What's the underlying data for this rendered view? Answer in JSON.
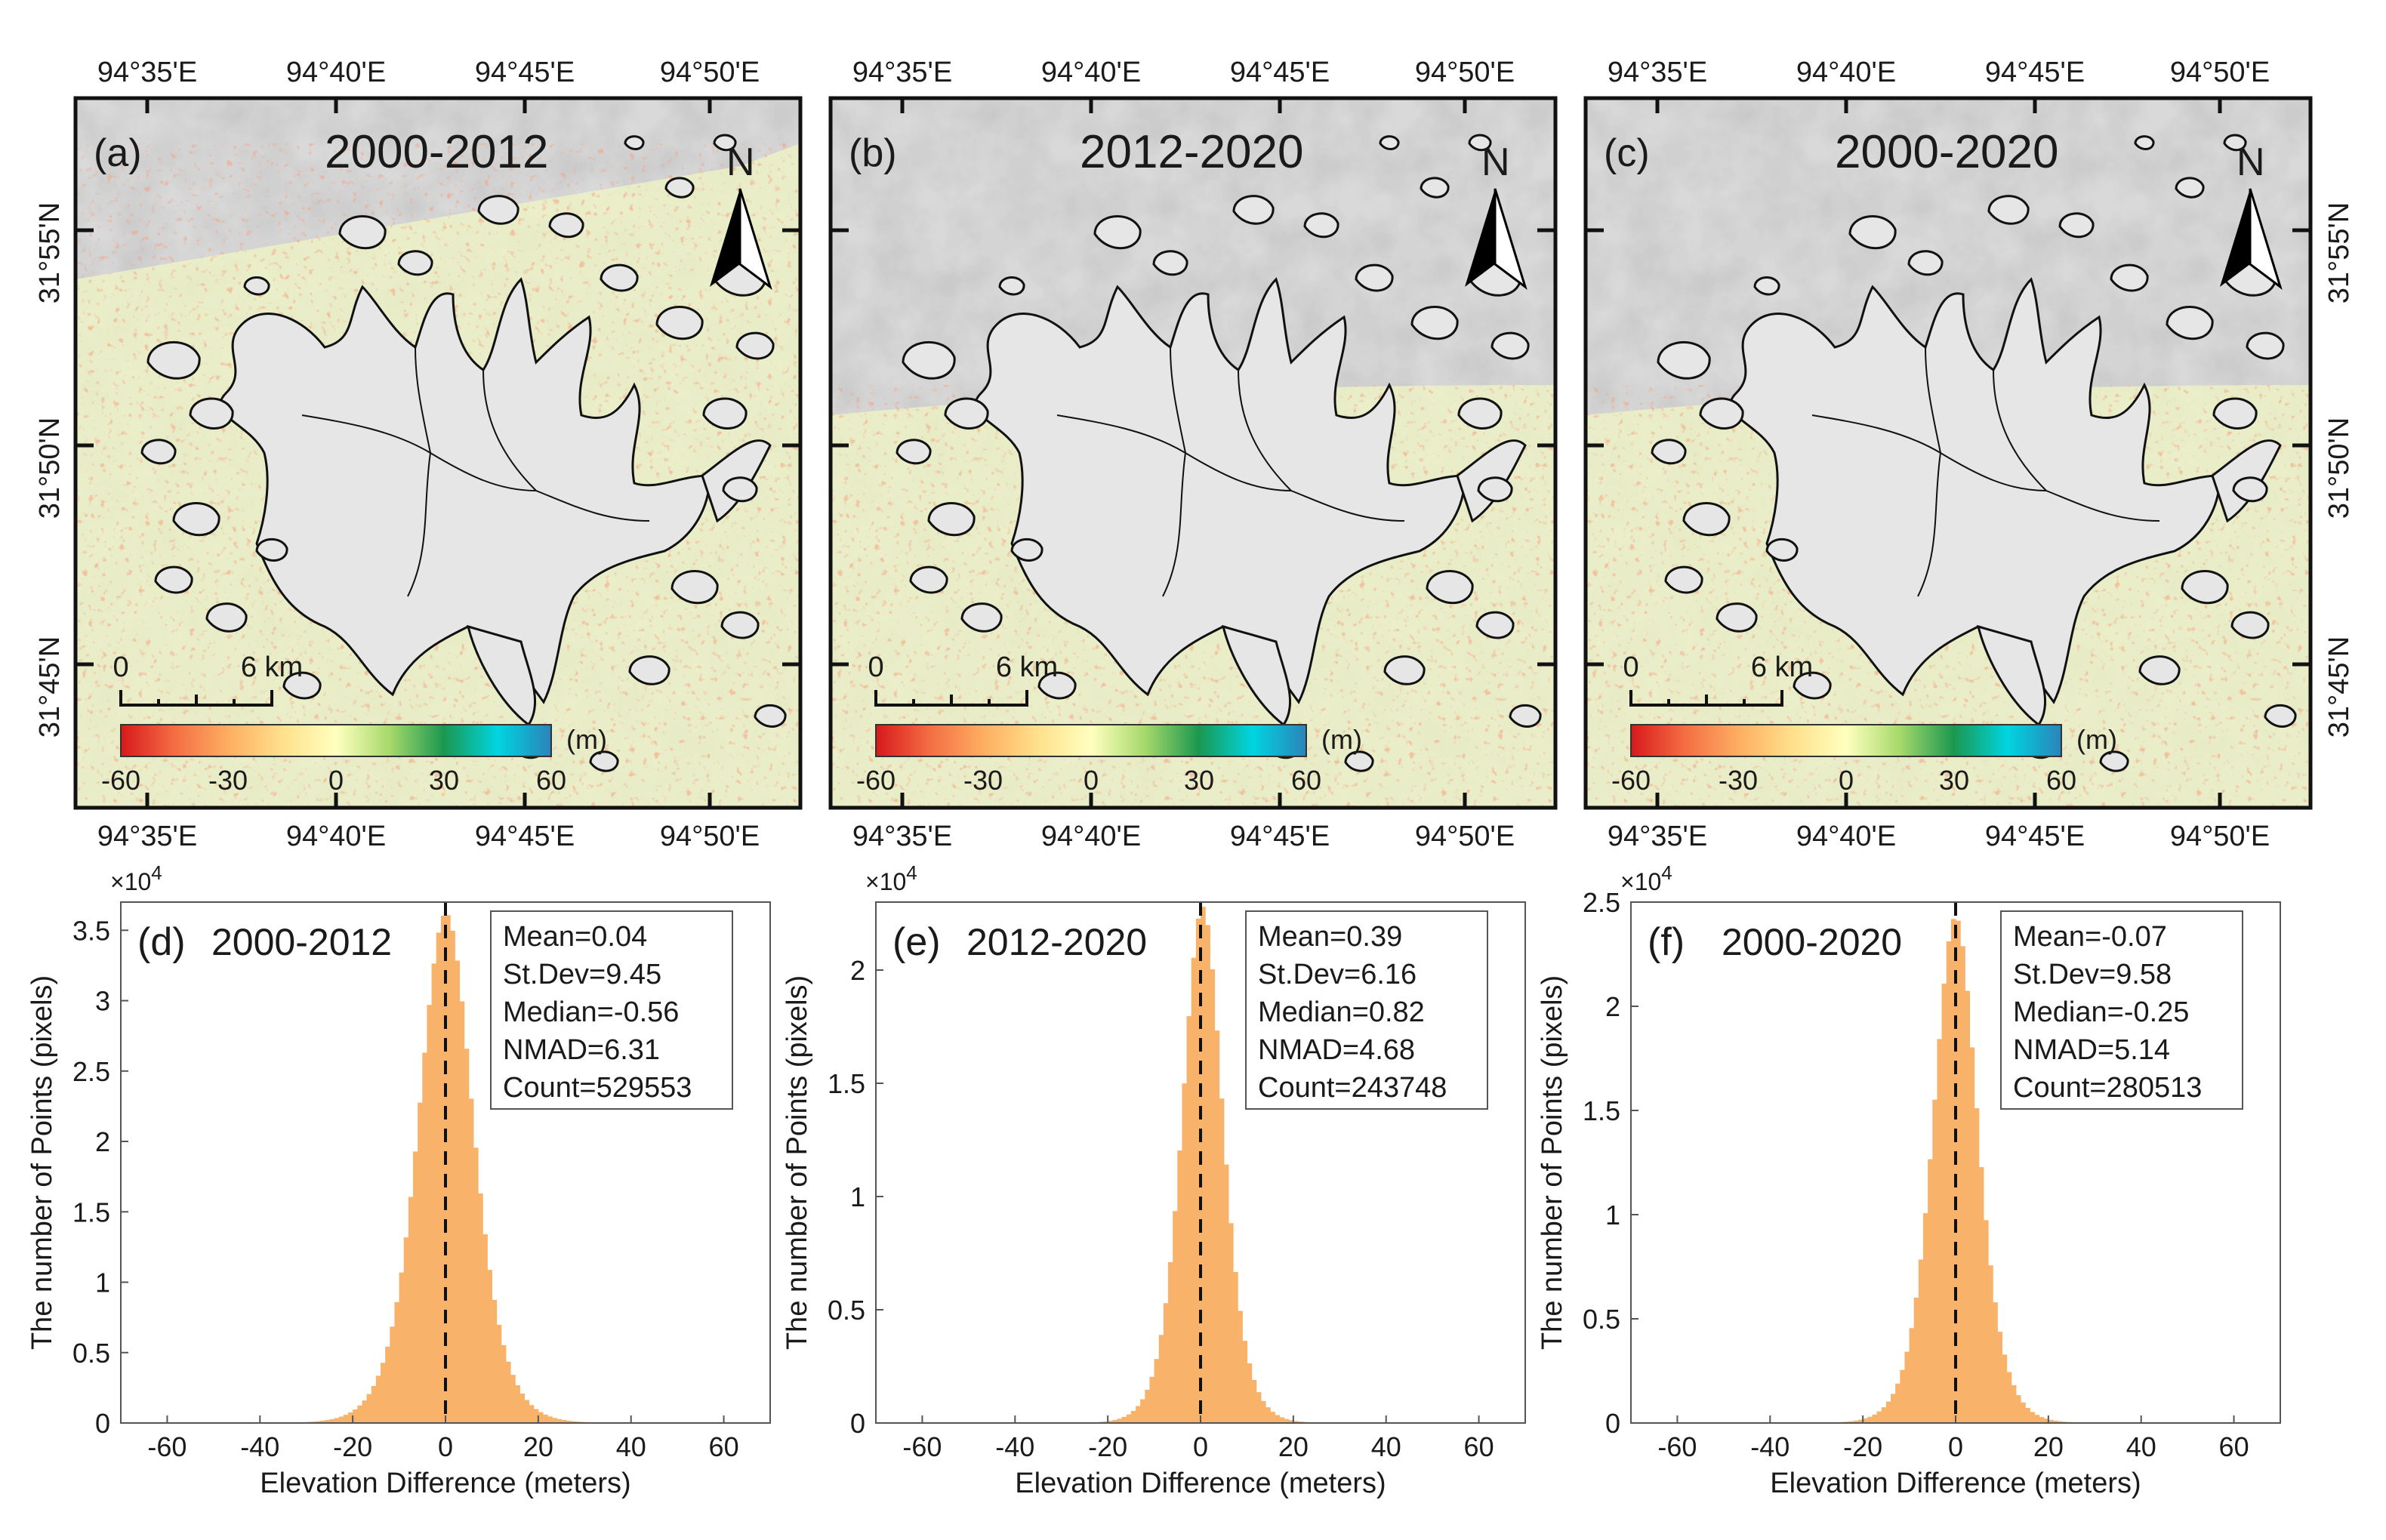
{
  "figure": {
    "maps": [
      {
        "label": "(a)",
        "period": "2000-2012",
        "lon_ticks": [
          "94°35'E",
          "94°40'E",
          "94°45'E",
          "94°50'E"
        ],
        "lat_ticks": [
          "31°55'N",
          "31°50'N",
          "31°45'N"
        ],
        "north": "N",
        "scale": {
          "start": "0",
          "end": "6 km"
        },
        "colorbar": {
          "unit": "(m)",
          "ticks": [
            "-60",
            "-30",
            "0",
            "30",
            "60"
          ]
        }
      },
      {
        "label": "(b)",
        "period": "2012-2020",
        "lon_ticks": [
          "94°35'E",
          "94°40'E",
          "94°45'E",
          "94°50'E"
        ],
        "lat_ticks": [
          "31°55'N",
          "31°50'N",
          "31°45'N"
        ],
        "north": "N",
        "scale": {
          "start": "0",
          "end": "6 km"
        },
        "colorbar": {
          "unit": "(m)",
          "ticks": [
            "-60",
            "-30",
            "0",
            "30",
            "60"
          ]
        }
      },
      {
        "label": "(c)",
        "period": "2000-2020",
        "lon_ticks": [
          "94°35'E",
          "94°40'E",
          "94°45'E",
          "94°50'E"
        ],
        "lat_ticks": [
          "31°55'N",
          "31°50'N",
          "31°45'N"
        ],
        "north": "N",
        "scale": {
          "start": "0",
          "end": "6 km"
        },
        "colorbar": {
          "unit": "(m)",
          "ticks": [
            "-60",
            "-30",
            "0",
            "30",
            "60"
          ]
        }
      }
    ],
    "colors": {
      "bar": "#f9b26a",
      "colormap": [
        "#d7191c",
        "#f46d43",
        "#fdae61",
        "#fee08b",
        "#ffffbf",
        "#a6d96a",
        "#1a9850",
        "#00d5e0",
        "#2b83ba"
      ],
      "hillshade": "#d9d9d9",
      "terrain_tint": "#eef3c4"
    }
  },
  "chart_data": [
    {
      "type": "bar",
      "panel": "(d)",
      "period": "2000-2012",
      "xlabel": "Elevation Difference (meters)",
      "ylabel": "The number of Points (pixels)",
      "exponent": "×10",
      "exponent_power": "4",
      "xlim": [
        -70,
        70
      ],
      "ylim": [
        0,
        3.7
      ],
      "xticks": [
        -60,
        -40,
        -20,
        0,
        20,
        40,
        60
      ],
      "yticks": [
        0,
        0.5,
        1,
        1.5,
        2,
        2.5,
        3,
        3.5
      ],
      "ytick_labels": [
        "0",
        "0.5",
        "1",
        "1.5",
        "2",
        "2.5",
        "3",
        "3.5"
      ],
      "peak": 3.62,
      "stats": {
        "mean": "Mean=0.04",
        "stdev": "St.Dev=9.45",
        "median": "Median=-0.56",
        "nmad": "NMAD=6.31",
        "count": "Count=529553"
      },
      "mean_value": 0.04,
      "nmad_value": 6.31,
      "reference_line_x": 0
    },
    {
      "type": "bar",
      "panel": "(e)",
      "period": "2012-2020",
      "xlabel": "Elevation Difference (meters)",
      "ylabel": "The number of Points (pixels)",
      "exponent": "×10",
      "exponent_power": "4",
      "xlim": [
        -70,
        70
      ],
      "ylim": [
        0,
        2.3
      ],
      "xticks": [
        -60,
        -40,
        -20,
        0,
        20,
        40,
        60
      ],
      "yticks": [
        0,
        0.5,
        1,
        1.5,
        2
      ],
      "ytick_labels": [
        "0",
        "0.5",
        "1",
        "1.5",
        "2"
      ],
      "peak": 2.28,
      "stats": {
        "mean": "Mean=0.39",
        "stdev": "St.Dev=6.16",
        "median": "Median=0.82",
        "nmad": "NMAD=4.68",
        "count": "Count=243748"
      },
      "mean_value": 0.39,
      "nmad_value": 4.68,
      "reference_line_x": 0
    },
    {
      "type": "bar",
      "panel": "(f)",
      "period": "2000-2020",
      "xlabel": "Elevation Difference (meters)",
      "ylabel": "The number of Points (pixels)",
      "exponent": "×10",
      "exponent_power": "4",
      "xlim": [
        -70,
        70
      ],
      "ylim": [
        0,
        2.5
      ],
      "xticks": [
        -60,
        -40,
        -20,
        0,
        20,
        40,
        60
      ],
      "yticks": [
        0,
        0.5,
        1,
        1.5,
        2,
        2.5
      ],
      "ytick_labels": [
        "0",
        "0.5",
        "1",
        "1.5",
        "2",
        "2.5"
      ],
      "peak": 2.43,
      "stats": {
        "mean": "Mean=-0.07",
        "stdev": "St.Dev=9.58",
        "median": "Median=-0.25",
        "nmad": "NMAD=5.14",
        "count": "Count=280513"
      },
      "mean_value": -0.07,
      "nmad_value": 5.14,
      "reference_line_x": 0
    }
  ]
}
